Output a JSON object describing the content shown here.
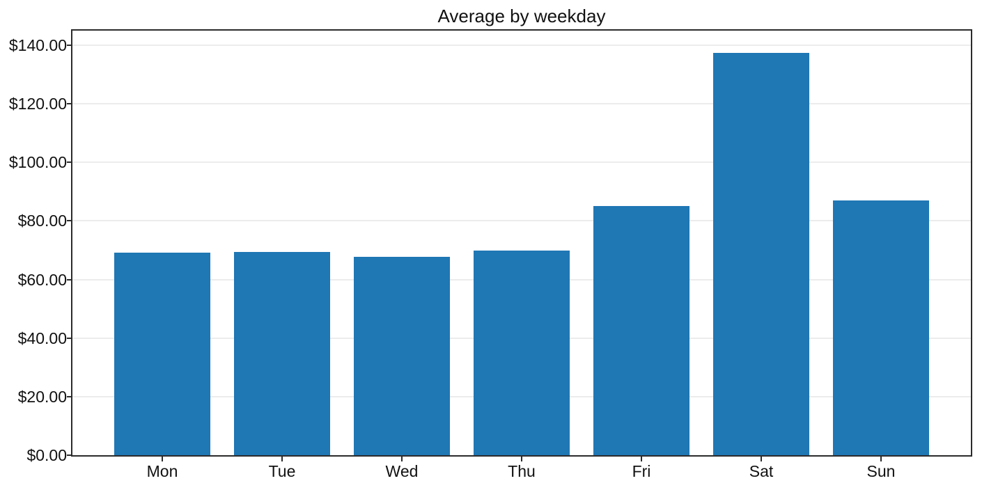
{
  "chart_data": {
    "type": "bar",
    "title": "Average by weekday",
    "categories": [
      "Mon",
      "Tue",
      "Wed",
      "Thu",
      "Fri",
      "Sat",
      "Sun"
    ],
    "values": [
      69.2,
      69.4,
      67.7,
      69.9,
      85.0,
      137.5,
      87.0
    ],
    "xlabel": "",
    "ylabel": "",
    "ylim": [
      0,
      145
    ],
    "xlim": [
      -0.75,
      6.75
    ],
    "bar_width_units": 0.8,
    "y_ticks": [
      0,
      20,
      40,
      60,
      80,
      100,
      120,
      140
    ],
    "y_tick_labels": [
      "$0.00",
      "$20.00",
      "$40.00",
      "$60.00",
      "$80.00",
      "$100.00",
      "$120.00",
      "$140.00"
    ],
    "grid": "horizontal-only",
    "legend": "none",
    "colors": {
      "bar": "#1f77b4",
      "grid": "#ececec",
      "spine": "#2b2b2b",
      "text": "#111111",
      "background": "#ffffff"
    }
  }
}
